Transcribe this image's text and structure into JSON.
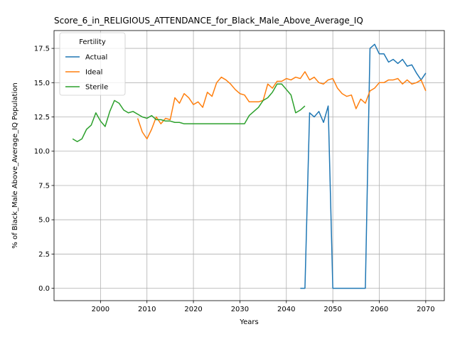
{
  "chart_data": {
    "type": "line",
    "title": "Score_6_in_RELIGIOUS_ATTENDANCE_for_Black_Male_Above_Average_IQ",
    "xlabel": "Years",
    "ylabel": "% of Black_Male Above_Average_IQ Population",
    "xlim": [
      1990,
      2074
    ],
    "ylim": [
      -0.9,
      18.8
    ],
    "x_ticks": [
      2000,
      2010,
      2020,
      2030,
      2040,
      2050,
      2060,
      2070
    ],
    "y_ticks": [
      0.0,
      2.5,
      5.0,
      7.5,
      10.0,
      12.5,
      15.0,
      17.5
    ],
    "x_tick_labels": [
      "2000",
      "2010",
      "2020",
      "2030",
      "2040",
      "2050",
      "2060",
      "2070"
    ],
    "y_tick_labels": [
      "0.0",
      "2.5",
      "5.0",
      "7.5",
      "10.0",
      "12.5",
      "15.0",
      "17.5"
    ],
    "grid": true,
    "legend": {
      "title": "Fertility",
      "placement": "top-left"
    },
    "series": [
      {
        "name": "Actual",
        "color": "#1f77b4",
        "points": [
          [
            2043,
            0.0
          ],
          [
            2044,
            0.0
          ],
          [
            2045,
            12.8
          ],
          [
            2046,
            12.5
          ],
          [
            2047,
            12.9
          ],
          [
            2048,
            12.1
          ],
          [
            2049,
            13.3
          ],
          [
            2050,
            0.0
          ],
          [
            2051,
            0.0
          ],
          [
            2052,
            0.0
          ],
          [
            2053,
            0.0
          ],
          [
            2054,
            0.0
          ],
          [
            2055,
            0.0
          ],
          [
            2056,
            0.0
          ],
          [
            2057,
            0.0
          ],
          [
            2058,
            17.5
          ],
          [
            2059,
            17.8
          ],
          [
            2060,
            17.1
          ],
          [
            2061,
            17.1
          ],
          [
            2062,
            16.5
          ],
          [
            2063,
            16.7
          ],
          [
            2064,
            16.4
          ],
          [
            2065,
            16.7
          ],
          [
            2066,
            16.2
          ],
          [
            2067,
            16.3
          ],
          [
            2068,
            15.7
          ],
          [
            2069,
            15.2
          ],
          [
            2070,
            15.7
          ]
        ]
      },
      {
        "name": "Ideal",
        "color": "#ff7f0e",
        "points": [
          [
            2008,
            12.4
          ],
          [
            2009,
            11.4
          ],
          [
            2010,
            10.9
          ],
          [
            2011,
            11.6
          ],
          [
            2012,
            12.5
          ],
          [
            2013,
            12.0
          ],
          [
            2014,
            12.4
          ],
          [
            2015,
            12.3
          ],
          [
            2016,
            13.9
          ],
          [
            2017,
            13.5
          ],
          [
            2018,
            14.2
          ],
          [
            2019,
            13.9
          ],
          [
            2020,
            13.4
          ],
          [
            2021,
            13.6
          ],
          [
            2022,
            13.2
          ],
          [
            2023,
            14.3
          ],
          [
            2024,
            14.0
          ],
          [
            2025,
            15.0
          ],
          [
            2026,
            15.4
          ],
          [
            2027,
            15.2
          ],
          [
            2028,
            14.9
          ],
          [
            2029,
            14.5
          ],
          [
            2030,
            14.2
          ],
          [
            2031,
            14.1
          ],
          [
            2032,
            13.6
          ],
          [
            2033,
            13.6
          ],
          [
            2034,
            13.6
          ],
          [
            2035,
            13.7
          ],
          [
            2036,
            14.9
          ],
          [
            2037,
            14.6
          ],
          [
            2038,
            15.1
          ],
          [
            2039,
            15.1
          ],
          [
            2040,
            15.3
          ],
          [
            2041,
            15.2
          ],
          [
            2042,
            15.4
          ],
          [
            2043,
            15.3
          ],
          [
            2044,
            15.8
          ],
          [
            2045,
            15.2
          ],
          [
            2046,
            15.4
          ],
          [
            2047,
            15.0
          ],
          [
            2048,
            14.9
          ],
          [
            2049,
            15.2
          ],
          [
            2050,
            15.3
          ],
          [
            2051,
            14.6
          ],
          [
            2052,
            14.2
          ],
          [
            2053,
            14.0
          ],
          [
            2054,
            14.1
          ],
          [
            2055,
            13.1
          ],
          [
            2056,
            13.8
          ],
          [
            2057,
            13.5
          ],
          [
            2058,
            14.4
          ],
          [
            2059,
            14.6
          ],
          [
            2060,
            15.0
          ],
          [
            2061,
            15.0
          ],
          [
            2062,
            15.2
          ],
          [
            2063,
            15.2
          ],
          [
            2064,
            15.3
          ],
          [
            2065,
            14.9
          ],
          [
            2066,
            15.2
          ],
          [
            2067,
            14.9
          ],
          [
            2068,
            15.0
          ],
          [
            2069,
            15.2
          ],
          [
            2070,
            14.4
          ]
        ]
      },
      {
        "name": "Sterile",
        "color": "#2ca02c",
        "points": [
          [
            1994,
            10.9
          ],
          [
            1995,
            10.7
          ],
          [
            1996,
            10.9
          ],
          [
            1997,
            11.6
          ],
          [
            1998,
            11.9
          ],
          [
            1999,
            12.8
          ],
          [
            2000,
            12.2
          ],
          [
            2001,
            11.8
          ],
          [
            2002,
            12.9
          ],
          [
            2003,
            13.7
          ],
          [
            2004,
            13.5
          ],
          [
            2005,
            13.0
          ],
          [
            2006,
            12.8
          ],
          [
            2007,
            12.9
          ],
          [
            2008,
            12.7
          ],
          [
            2009,
            12.5
          ],
          [
            2010,
            12.4
          ],
          [
            2011,
            12.6
          ],
          [
            2012,
            12.3
          ],
          [
            2013,
            12.3
          ],
          [
            2014,
            12.2
          ],
          [
            2015,
            12.2
          ],
          [
            2016,
            12.1
          ],
          [
            2017,
            12.1
          ],
          [
            2018,
            12.0
          ],
          [
            2019,
            12.0
          ],
          [
            2020,
            12.0
          ],
          [
            2021,
            12.0
          ],
          [
            2022,
            12.0
          ],
          [
            2023,
            12.0
          ],
          [
            2024,
            12.0
          ],
          [
            2025,
            12.0
          ],
          [
            2026,
            12.0
          ],
          [
            2027,
            12.0
          ],
          [
            2028,
            12.0
          ],
          [
            2029,
            12.0
          ],
          [
            2030,
            12.0
          ],
          [
            2031,
            12.0
          ],
          [
            2032,
            12.6
          ],
          [
            2033,
            12.9
          ],
          [
            2034,
            13.2
          ],
          [
            2035,
            13.7
          ],
          [
            2036,
            13.9
          ],
          [
            2037,
            14.3
          ],
          [
            2038,
            14.9
          ],
          [
            2039,
            14.9
          ],
          [
            2040,
            14.5
          ],
          [
            2041,
            14.1
          ],
          [
            2042,
            12.8
          ],
          [
            2043,
            13.0
          ],
          [
            2044,
            13.3
          ]
        ]
      }
    ]
  }
}
